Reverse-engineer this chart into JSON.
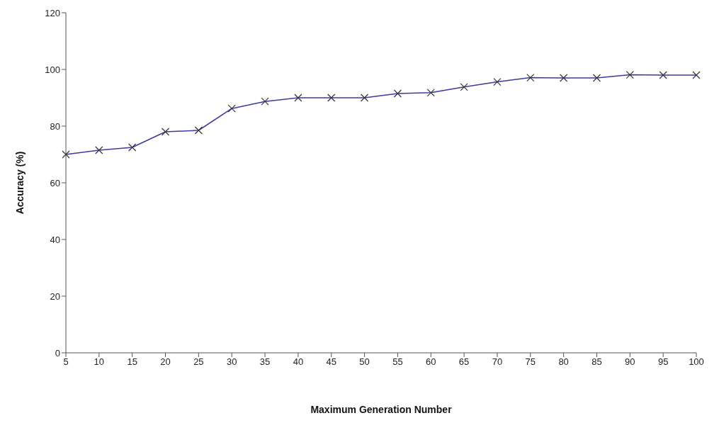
{
  "chart_data": {
    "type": "line",
    "xlabel": "Maximum Generation Number",
    "ylabel": "Accuracy (%)",
    "categories": [
      "5",
      "10",
      "15",
      "20",
      "25",
      "30",
      "35",
      "40",
      "45",
      "50",
      "55",
      "60",
      "65",
      "70",
      "75",
      "80",
      "85",
      "90",
      "95",
      "100"
    ],
    "series": [
      {
        "color": "#3a3aa0",
        "values": [
          70,
          71.5,
          72.5,
          78,
          78.5,
          86.2,
          88.7,
          90,
          90,
          90,
          91.5,
          91.8,
          93.8,
          95.6,
          97.1,
          97,
          97,
          98.1,
          98,
          98
        ]
      }
    ],
    "ylim": [
      0,
      120
    ],
    "yticks": [
      0,
      20,
      40,
      60,
      80,
      100,
      120
    ],
    "grid": false,
    "legend": false,
    "marker": "cross",
    "line_style": "solid"
  }
}
